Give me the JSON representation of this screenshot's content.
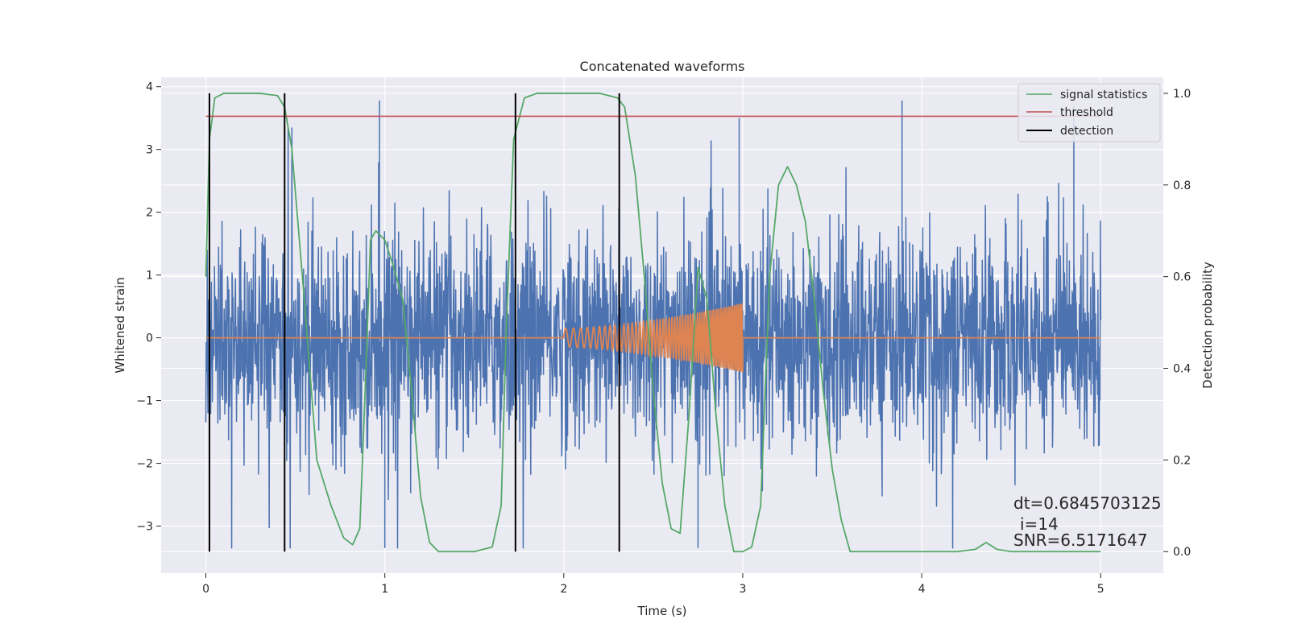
{
  "chart_data": {
    "type": "line",
    "title": "Concatenated waveforms",
    "xlabel": "Time (s)",
    "ylabel_left": "Whitened strain",
    "ylabel_right": "Detection probability",
    "xlim": [
      -0.25,
      5.35
    ],
    "ylim_left": [
      -3.75,
      4.15
    ],
    "ylim_right": [
      -0.047,
      1.035
    ],
    "x_ticks": [
      0,
      1,
      2,
      3,
      4,
      5
    ],
    "x_tick_labels": [
      "0",
      "1",
      "2",
      "3",
      "4",
      "5"
    ],
    "y_left_ticks": [
      -3,
      -2,
      -1,
      0,
      1,
      2,
      3,
      4
    ],
    "y_left_tick_labels": [
      "−3",
      "−2",
      "−1",
      "0",
      "1",
      "2",
      "3",
      "4"
    ],
    "y_right_ticks": [
      0.0,
      0.2,
      0.4,
      0.6,
      0.8,
      1.0
    ],
    "y_right_tick_labels": [
      "0.0",
      "0.2",
      "0.4",
      "0.6",
      "0.8",
      "1.0"
    ],
    "grid": true,
    "legend_position": "top-right",
    "series": [
      {
        "name": "signal statistics",
        "color": "#55a868",
        "x": [
          0.0,
          0.02,
          0.05,
          0.1,
          0.2,
          0.3,
          0.4,
          0.44,
          0.48,
          0.55,
          0.62,
          0.7,
          0.77,
          0.82,
          0.86,
          0.89,
          0.92,
          0.95,
          1.0,
          1.05,
          1.1,
          1.15,
          1.2,
          1.25,
          1.3,
          1.4,
          1.5,
          1.6,
          1.65,
          1.68,
          1.72,
          1.78,
          1.85,
          2.0,
          2.2,
          2.3,
          2.34,
          2.4,
          2.45,
          2.5,
          2.55,
          2.6,
          2.65,
          2.7,
          2.75,
          2.8,
          2.85,
          2.9,
          2.95,
          3.0,
          3.05,
          3.1,
          3.15,
          3.2,
          3.25,
          3.3,
          3.35,
          3.4,
          3.45,
          3.5,
          3.55,
          3.6,
          3.7,
          3.8,
          4.0,
          4.2,
          4.3,
          4.36,
          4.42,
          4.5,
          4.7,
          5.0
        ],
        "values": [
          0.6,
          0.9,
          0.99,
          1.0,
          1.0,
          1.0,
          0.995,
          0.97,
          0.88,
          0.55,
          0.2,
          0.1,
          0.03,
          0.015,
          0.05,
          0.35,
          0.68,
          0.7,
          0.68,
          0.62,
          0.55,
          0.35,
          0.12,
          0.02,
          0.0,
          0.0,
          0.0,
          0.01,
          0.1,
          0.5,
          0.9,
          0.99,
          1.0,
          1.0,
          1.0,
          0.99,
          0.97,
          0.82,
          0.6,
          0.35,
          0.15,
          0.05,
          0.04,
          0.3,
          0.62,
          0.55,
          0.3,
          0.1,
          0.0,
          0.0,
          0.01,
          0.1,
          0.6,
          0.8,
          0.84,
          0.8,
          0.72,
          0.55,
          0.35,
          0.18,
          0.07,
          0.0,
          0.0,
          0.0,
          0.0,
          0.0,
          0.005,
          0.02,
          0.005,
          0.0,
          0.0,
          0.0
        ]
      },
      {
        "name": "threshold",
        "color": "#c44e52",
        "x": [
          0.0,
          5.0
        ],
        "values": [
          0.95,
          0.95
        ]
      },
      {
        "name": "detection",
        "color": "#000000",
        "x": [
          0.02,
          0.44,
          1.73,
          2.31
        ],
        "ymin": 0.0,
        "ymax": 1.0
      }
    ],
    "strain_noise": {
      "color": "#4c72b0",
      "x_range": [
        0.0,
        5.0
      ],
      "typical_envelope": [
        -1.5,
        1.5
      ],
      "peak_range": [
        -3.35,
        3.8
      ]
    },
    "injected_signal": {
      "color": "#dd8452",
      "baseline": 0.0,
      "chirp_start": 2.0,
      "chirp_end": 3.0,
      "amplitude_start": 0.15,
      "amplitude_end": 0.55
    },
    "annotations": [
      "dt=0.6845703125",
      "i=14",
      "SNR=6.5171647"
    ]
  }
}
